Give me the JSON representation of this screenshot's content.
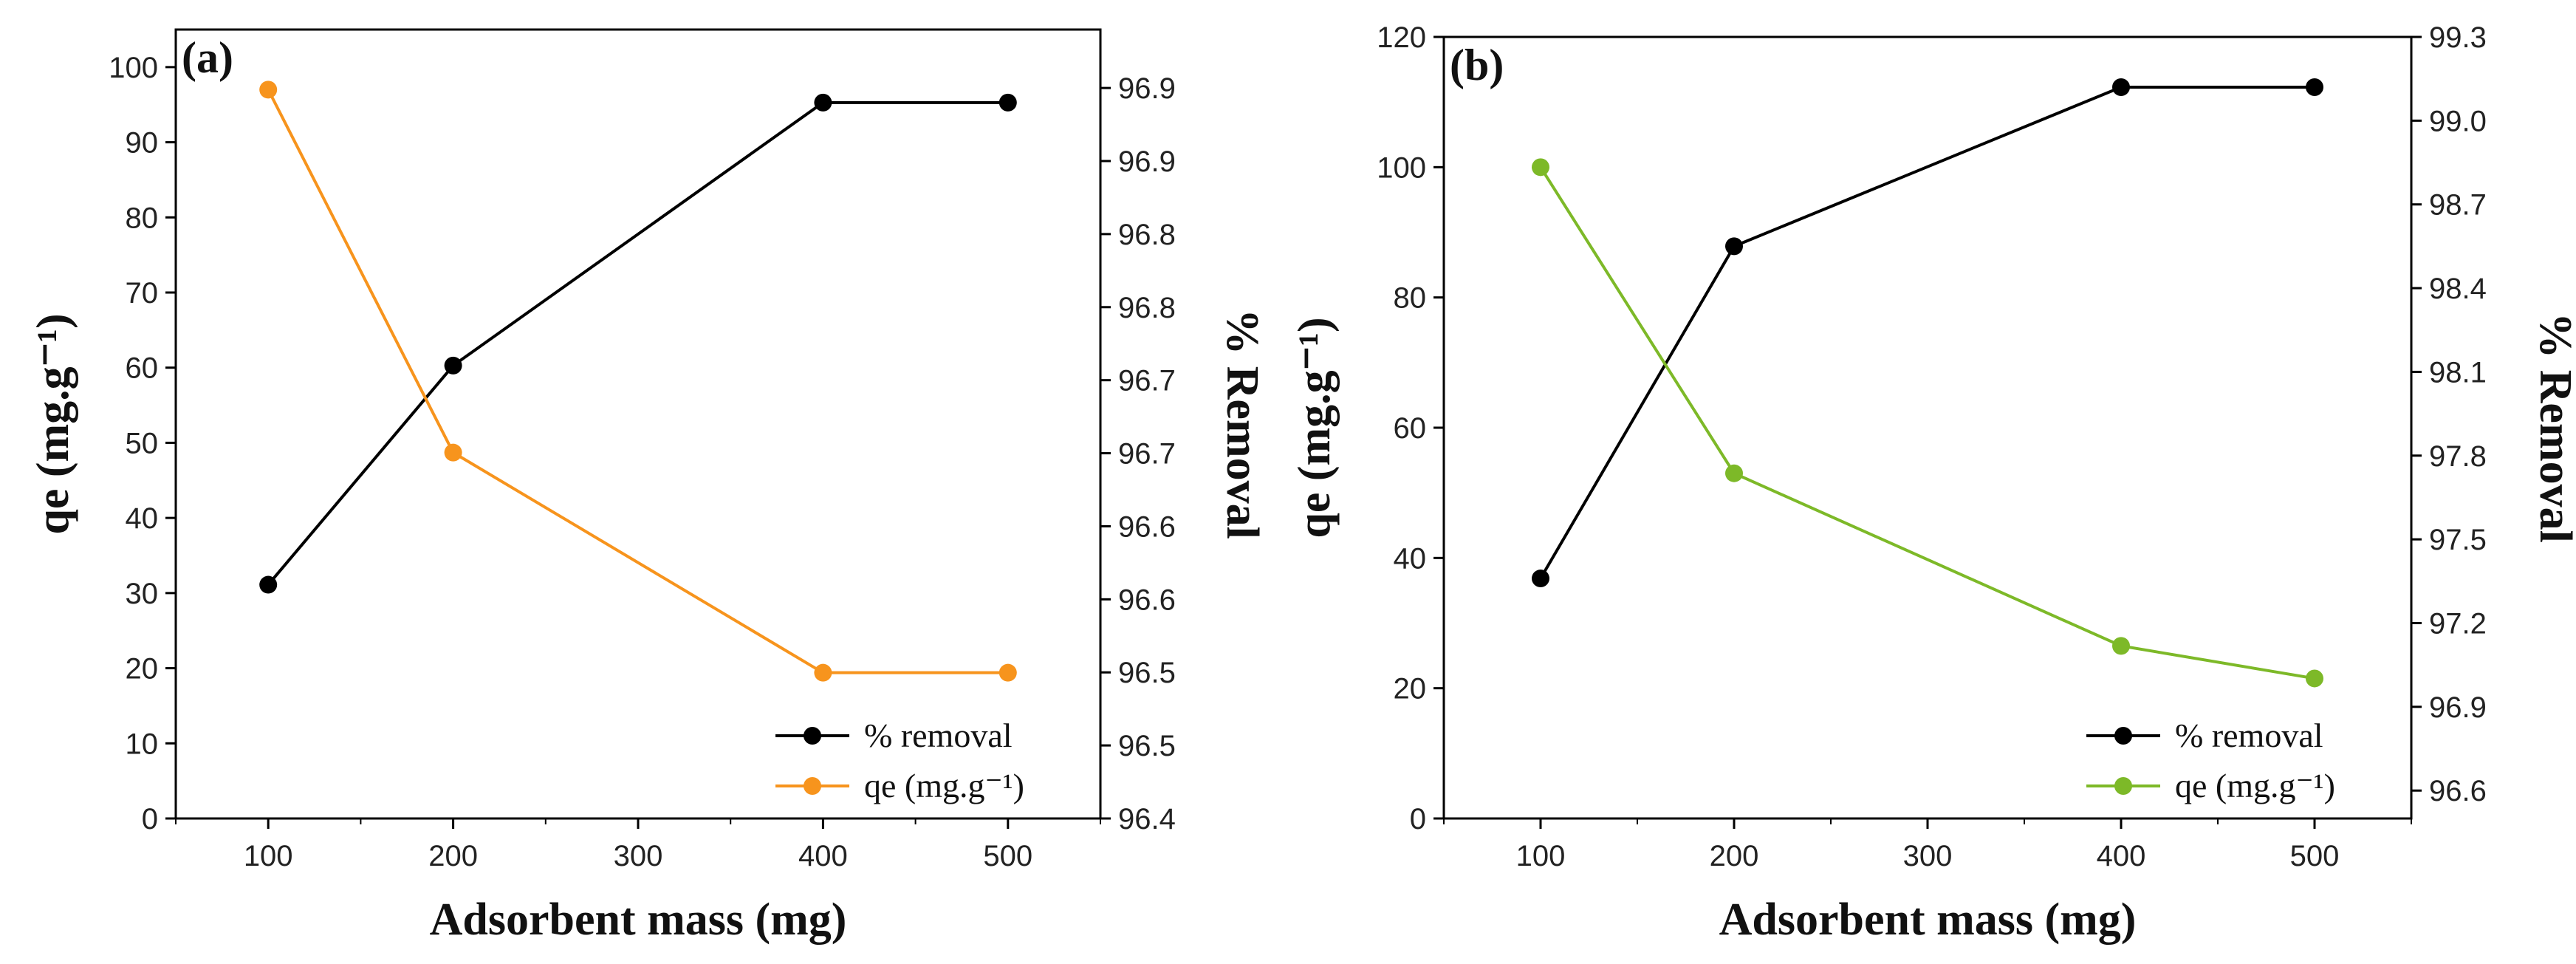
{
  "chart_data": [
    {
      "type": "line",
      "panel_label": "(a)",
      "xlabel": "Adsorbent mass (mg)",
      "ylabel_left": "qe (mg.g⁻¹)",
      "ylabel_right": "% Removal",
      "xlim": [
        50,
        550
      ],
      "x_ticks": [
        100,
        200,
        300,
        400,
        500
      ],
      "y_left_lim": [
        0,
        105
      ],
      "y_left_ticks": [
        0,
        10,
        20,
        30,
        40,
        50,
        60,
        70,
        80,
        90,
        100
      ],
      "y_right_lim": [
        96.4,
        96.94
      ],
      "y_right_ticks": [
        96.4,
        96.45,
        96.5,
        96.55,
        96.6,
        96.65,
        96.7,
        96.75,
        96.8,
        96.85,
        96.9
      ],
      "y_right_tick_labels": [
        "96.4",
        "96.5",
        "96.5",
        "96.6",
        "96.6",
        "96.7",
        "96.7",
        "96.8",
        "96.8",
        "96.9",
        "96.9"
      ],
      "legend_position": "bottom-right",
      "series": [
        {
          "name": "% removal",
          "axis": "right",
          "color": "#000000",
          "x": [
            100,
            200,
            400,
            500
          ],
          "values": [
            96.56,
            96.71,
            96.89,
            96.89
          ]
        },
        {
          "name": "qe (mg.g⁻¹)",
          "axis": "left",
          "color": "#F7941D",
          "x": [
            100,
            200,
            400,
            500
          ],
          "values": [
            97,
            48.7,
            19.4,
            19.4
          ]
        }
      ]
    },
    {
      "type": "line",
      "panel_label": "(b)",
      "xlabel": "Adsorbent mass (mg)",
      "ylabel_left": "qe (mg.g⁻¹)",
      "ylabel_right": "% Removal",
      "xlim": [
        50,
        550
      ],
      "x_ticks": [
        100,
        200,
        300,
        400,
        500
      ],
      "y_left_lim": [
        0,
        120
      ],
      "y_left_ticks": [
        0,
        20,
        40,
        60,
        80,
        100,
        120
      ],
      "y_right_lim": [
        96.5,
        99.3
      ],
      "y_right_ticks": [
        96.6,
        96.9,
        97.2,
        97.5,
        97.8,
        98.1,
        98.4,
        98.7,
        99.0,
        99.3
      ],
      "y_right_tick_labels": [
        "96.6",
        "96.9",
        "97.2",
        "97.5",
        "97.8",
        "98.1",
        "98.4",
        "98.7",
        "99.0",
        "99.3"
      ],
      "legend_position": "bottom-right",
      "series": [
        {
          "name": "% removal",
          "axis": "right",
          "color": "#000000",
          "x": [
            100,
            200,
            400,
            500
          ],
          "values": [
            97.36,
            98.55,
            99.12,
            99.12
          ]
        },
        {
          "name": "qe (mg.g⁻¹)",
          "axis": "left",
          "color": "#7DB928",
          "x": [
            100,
            200,
            400,
            500
          ],
          "values": [
            100,
            53,
            26.5,
            21.5
          ]
        }
      ]
    }
  ]
}
